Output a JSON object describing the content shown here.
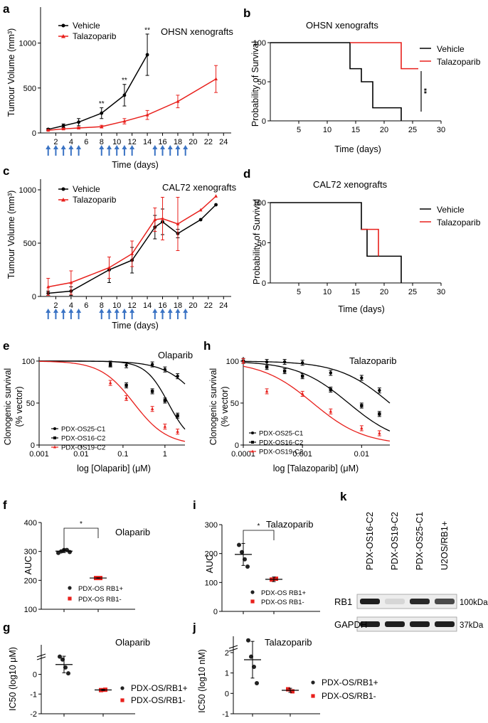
{
  "colors": {
    "vehicle": "#000000",
    "talazoparib": "#e8201c",
    "arrow": "#3a73c4",
    "rb1_minus": "#e8201c",
    "rb1_plus": "#222222"
  },
  "panel_labels": {
    "a": "a",
    "b": "b",
    "c": "c",
    "d": "d",
    "e": "e",
    "h": "h",
    "f": "f",
    "i": "i",
    "k": "k",
    "g": "g",
    "j": "j"
  },
  "chart_data": [
    {
      "panel": "a",
      "type": "line",
      "title": "OHSN xenografts",
      "xlabel": "Time (days)",
      "ylabel": "Tumour Volume (mm³)",
      "xlim": [
        0,
        25
      ],
      "ylim": [
        0,
        1400
      ],
      "xticks": [
        2,
        4,
        6,
        8,
        10,
        12,
        14,
        16,
        18,
        20,
        22,
        24
      ],
      "yticks": [
        0,
        500,
        1000
      ],
      "series": [
        {
          "name": "Vehicle",
          "color": "vehicle",
          "x": [
            1,
            3,
            5,
            8,
            11,
            14
          ],
          "y": [
            40,
            80,
            120,
            220,
            420,
            870
          ],
          "err": [
            10,
            20,
            40,
            60,
            120,
            230
          ]
        },
        {
          "name": "Talazoparib",
          "color": "talazoparib",
          "x": [
            1,
            3,
            5,
            8,
            11,
            14,
            18,
            23
          ],
          "y": [
            30,
            45,
            55,
            70,
            130,
            200,
            350,
            600
          ],
          "err": [
            5,
            8,
            10,
            15,
            30,
            50,
            70,
            150
          ]
        }
      ],
      "annotations": [
        {
          "x": 8,
          "y": 300,
          "text": "**"
        },
        {
          "x": 11,
          "y": 560,
          "text": "**"
        },
        {
          "x": 14,
          "y": 1120,
          "text": "**"
        }
      ],
      "dosing_days": [
        1,
        2,
        3,
        4,
        5,
        8,
        9,
        10,
        11,
        12,
        15,
        16,
        17,
        18,
        19
      ]
    },
    {
      "panel": "b",
      "type": "line",
      "title": "OHSN xenografts",
      "xlabel": "Time (days)",
      "ylabel": "Probability of Survival",
      "xlim": [
        0,
        30
      ],
      "ylim": [
        0,
        100
      ],
      "xticks": [
        5,
        10,
        15,
        20,
        25,
        30
      ],
      "yticks": [
        0,
        50,
        100
      ],
      "series": [
        {
          "name": "Vehicle",
          "color": "vehicle",
          "x": [
            0,
            14,
            14,
            16,
            16,
            18,
            18,
            23,
            23
          ],
          "y": [
            100,
            100,
            66.7,
            66.7,
            50,
            50,
            16.7,
            16.7,
            0
          ]
        },
        {
          "name": "Talazoparib",
          "color": "talazoparib",
          "x": [
            14,
            23,
            23,
            26
          ],
          "y": [
            100,
            100,
            66.7,
            66.7
          ]
        }
      ],
      "significance": "**"
    },
    {
      "panel": "c",
      "type": "line",
      "title": "CAL72 xenografts",
      "xlabel": "Time (days)",
      "ylabel": "Tumour Volume (mm³)",
      "xlim": [
        0,
        25
      ],
      "ylim": [
        0,
        1100
      ],
      "xticks": [
        2,
        4,
        6,
        8,
        10,
        12,
        14,
        16,
        18,
        20,
        22,
        24
      ],
      "yticks": [
        0,
        500,
        1000
      ],
      "series": [
        {
          "name": "Vehicle",
          "color": "vehicle",
          "x": [
            1,
            4,
            9,
            12,
            15,
            16,
            18,
            21,
            23
          ],
          "y": [
            30,
            50,
            250,
            340,
            650,
            700,
            590,
            720,
            860
          ],
          "err": [
            20,
            40,
            120,
            120,
            110,
            120,
            40,
            0,
            0
          ]
        },
        {
          "name": "Talazoparib",
          "color": "talazoparib",
          "x": [
            1,
            4,
            9,
            12,
            15,
            16,
            18,
            21,
            23
          ],
          "y": [
            90,
            130,
            270,
            400,
            720,
            730,
            680,
            810,
            940
          ],
          "err": [
            80,
            110,
            100,
            120,
            110,
            200,
            250,
            0,
            0
          ]
        }
      ],
      "dosing_days": [
        1,
        2,
        3,
        4,
        5,
        8,
        9,
        10,
        11,
        12,
        15,
        16,
        17,
        18,
        19
      ]
    },
    {
      "panel": "d",
      "type": "line",
      "title": "CAL72 xenografts",
      "xlabel": "Time (days)",
      "ylabel": "Probability of Survival",
      "xlim": [
        0,
        30
      ],
      "ylim": [
        0,
        100
      ],
      "xticks": [
        5,
        10,
        15,
        20,
        25,
        30
      ],
      "yticks": [
        0,
        50,
        100
      ],
      "series": [
        {
          "name": "Vehicle",
          "color": "vehicle",
          "x": [
            0,
            16,
            16,
            17,
            17,
            23,
            23
          ],
          "y": [
            100,
            100,
            66.7,
            66.7,
            33.3,
            33.3,
            0
          ]
        },
        {
          "name": "Talazoparib",
          "color": "talazoparib",
          "x": [
            16,
            18,
            18,
            19,
            19
          ],
          "y": [
            66.7,
            66.7,
            66.7,
            66.7,
            33.3
          ]
        }
      ]
    },
    {
      "panel": "e",
      "type": "scatter",
      "title": "Olaparib",
      "xlabel": "log [Olaparib] (μM)",
      "ylabel": "Clonogenic survival (% vector)",
      "xscale": "log",
      "xlim": [
        0.001,
        3
      ],
      "ylim": [
        0,
        105
      ],
      "xticks": [
        0.001,
        0.01,
        0.1,
        1
      ],
      "xticklabels": [
        "0.001",
        "0.01",
        "0.1",
        "1"
      ],
      "yticks": [
        0,
        50,
        100
      ],
      "yticklabels": [
        "0",
        "50",
        "100"
      ],
      "series": [
        {
          "name": "PDX-OS25-C1",
          "color": "vehicle",
          "marker": "circle",
          "x": [
            0.05,
            0.12,
            0.5,
            1.0,
            2.0
          ],
          "y": [
            97,
            95,
            96,
            90,
            82
          ],
          "ic50": 8,
          "hill": 1.0
        },
        {
          "name": "PDX-OS16-C2",
          "color": "vehicle",
          "marker": "square",
          "x": [
            0.05,
            0.12,
            0.5,
            1.0,
            2.0
          ],
          "y": [
            96,
            71,
            64,
            53,
            35
          ],
          "ic50": 1.2,
          "hill": 1.6
        },
        {
          "name": "PDX-OS19-C2",
          "color": "talazoparib",
          "marker": "triangle",
          "x": [
            0.05,
            0.12,
            0.5,
            1.0,
            2.0
          ],
          "y": [
            74,
            56,
            43,
            22,
            16
          ],
          "ic50": 0.18,
          "hill": 1.1
        }
      ]
    },
    {
      "panel": "h",
      "type": "scatter",
      "title": "Talazoparib",
      "xlabel": "log [Talazoparib] (μM)",
      "ylabel": "Clonogenic survival (% vector)",
      "xscale": "log",
      "xlim": [
        0.0001,
        0.03
      ],
      "ylim": [
        0,
        105
      ],
      "xticks": [
        0.0001,
        0.001,
        0.01
      ],
      "xticklabels": [
        "0.0001",
        "0.001",
        "0.01"
      ],
      "yticks": [
        0,
        50,
        100
      ],
      "yticklabels": [
        "0",
        "50",
        "100"
      ],
      "series": [
        {
          "name": "PDX-OS25-C1",
          "color": "vehicle",
          "marker": "circle",
          "x": [
            0.0001,
            0.00025,
            0.0005,
            0.001,
            0.003,
            0.01,
            0.02
          ],
          "y": [
            100,
            99,
            99,
            98,
            86,
            80,
            65
          ],
          "ic50": 0.03,
          "hill": 1.0
        },
        {
          "name": "PDX-OS16-C2",
          "color": "vehicle",
          "marker": "square",
          "x": [
            0.0001,
            0.00025,
            0.0005,
            0.001,
            0.003,
            0.01,
            0.02
          ],
          "y": [
            100,
            93,
            88,
            82,
            66,
            47,
            37
          ],
          "ic50": 0.006,
          "hill": 1.0
        },
        {
          "name": "PDX-OS19-C2",
          "color": "talazoparib",
          "marker": "triangle",
          "x": [
            0.0001,
            0.00025,
            0.001,
            0.003,
            0.01,
            0.02
          ],
          "y": [
            100,
            64,
            61,
            40,
            20,
            14
          ],
          "ic50": 0.0015,
          "hill": 1.0
        }
      ]
    },
    {
      "panel": "f",
      "type": "scatter",
      "title": "Olaparib",
      "ylabel": "AUC",
      "ylim": [
        100,
        400
      ],
      "yticks": [
        100,
        200,
        300,
        400
      ],
      "series": [
        {
          "name": "PDX-OS RB1+",
          "color": "rb1_plus",
          "marker": "circle",
          "values": [
            295,
            300,
            305,
            305,
            298
          ],
          "mean": 301,
          "sd": 5
        },
        {
          "name": "PDX-OS RB1-",
          "color": "rb1_minus",
          "marker": "square",
          "values": [
            208,
            208
          ],
          "mean": 208,
          "sd": 1
        }
      ],
      "significance": "*"
    },
    {
      "panel": "i",
      "type": "scatter",
      "title": "Talazoparib",
      "ylabel": "AUC",
      "ylim": [
        0,
        300
      ],
      "yticks": [
        0,
        100,
        200,
        300
      ],
      "series": [
        {
          "name": "PDX-OS RB1+",
          "color": "rb1_plus",
          "marker": "circle",
          "values": [
            230,
            205,
            180,
            155
          ],
          "mean": 197,
          "sd": 38
        },
        {
          "name": "PDX-OS RB1-",
          "color": "rb1_minus",
          "marker": "square",
          "values": [
            110,
            113
          ],
          "mean": 111,
          "sd": 8
        }
      ],
      "significance": "*"
    },
    {
      "panel": "g",
      "type": "scatter",
      "title": "Olaparib",
      "ylabel": "IC50 (log10 μM)",
      "ylim": [
        -2,
        1.5
      ],
      "yticks": [
        -2,
        -1,
        0
      ],
      "series": [
        {
          "name": "PDX-OS/RB1+",
          "color": "rb1_plus",
          "marker": "circle",
          "values": [
            0.9,
            0.75,
            0.35,
            0.05
          ],
          "mean": 0.5,
          "sd": 0.42
        },
        {
          "name": "PDX-OS/RB1-",
          "color": "rb1_minus",
          "marker": "square",
          "values": [
            -0.8,
            -0.78
          ],
          "mean": -0.79,
          "sd": 0.03
        }
      ]
    },
    {
      "panel": "j",
      "type": "scatter",
      "title": "Talazoparib",
      "ylabel": "IC50 (log10 nM)",
      "ylim": [
        -1,
        2.8
      ],
      "yticks": [
        -1,
        0,
        1,
        2
      ],
      "series": [
        {
          "name": "PDX-OS/RB1+",
          "color": "rb1_plus",
          "marker": "circle",
          "values": [
            2.6,
            1.8,
            1.3,
            0.5
          ],
          "mean": 1.65,
          "sd": 0.9
        },
        {
          "name": "PDX-OS/RB1-",
          "color": "rb1_minus",
          "marker": "square",
          "values": [
            0.2,
            0.1
          ],
          "mean": 0.15,
          "sd": 0.1
        }
      ]
    }
  ],
  "western_blot": {
    "lanes": [
      "PDX-OS16-C2",
      "PDX-OS19-C2",
      "PDX-OS25-C1",
      "U2OS/RB1+"
    ],
    "rows": [
      {
        "label": "RB1",
        "size": "100kDa",
        "intensity": [
          0.95,
          0.1,
          0.9,
          0.75
        ]
      },
      {
        "label": "GAPDH",
        "size": "37kDa",
        "intensity": [
          0.95,
          0.95,
          0.95,
          0.95
        ]
      }
    ]
  }
}
